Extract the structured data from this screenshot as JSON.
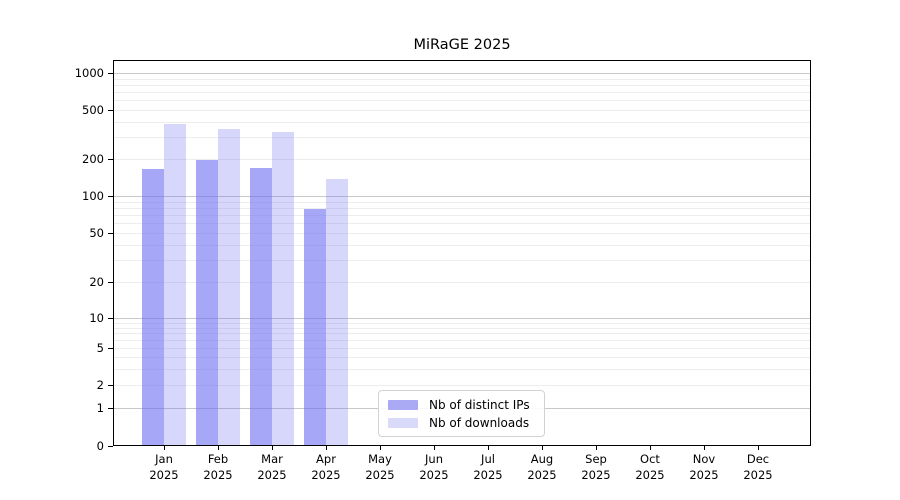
{
  "chart_data": {
    "type": "bar",
    "title": "MiRaGE 2025",
    "xlabel": "",
    "ylabel": "",
    "yscale": "log-with-zero (symlog)",
    "grid": "horizontal major+minor log gridlines",
    "legend_position": "inside plot, bottom center-left",
    "y_ticks": [
      0,
      1,
      2,
      5,
      10,
      20,
      50,
      100,
      200,
      500,
      1000
    ],
    "ylim": [
      0,
      1250
    ],
    "categories": [
      "Jan",
      "Feb",
      "Mar",
      "Apr",
      "May",
      "Jun",
      "Jul",
      "Aug",
      "Sep",
      "Oct",
      "Nov",
      "Dec"
    ],
    "x_tick_year": "2025",
    "series": [
      {
        "name": "Nb of distinct IPs",
        "values": [
          165,
          195,
          170,
          78,
          null,
          null,
          null,
          null,
          null,
          null,
          null,
          null
        ]
      },
      {
        "name": "Nb of downloads",
        "values": [
          385,
          350,
          330,
          138,
          null,
          null,
          null,
          null,
          null,
          null,
          null,
          null
        ]
      }
    ],
    "colors": {
      "bar_base": "#6a6cf0",
      "ips_fill_on_white": "#a9aaf3",
      "downloads_fill_on_white": "#d9dafa",
      "grid_major": "#c9c9c9",
      "grid_minor": "#ededed",
      "spine": "#000000"
    }
  }
}
